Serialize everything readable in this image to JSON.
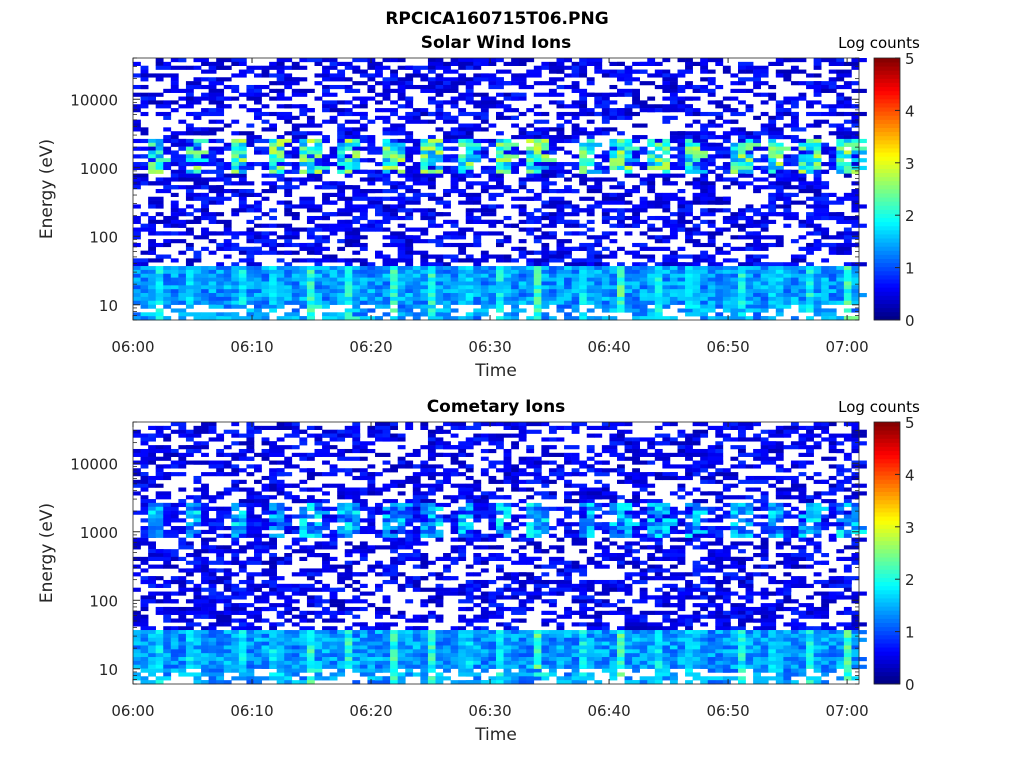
{
  "figure": {
    "title": "RPCICA160715T06.PNG"
  },
  "chart_data": [
    {
      "type": "heatmap",
      "title": "Solar Wind Ions",
      "xlabel": "Time",
      "ylabel": "Energy (eV)",
      "x_ticks": [
        "06:00",
        "06:10",
        "06:20",
        "06:30",
        "06:40",
        "06:50",
        "07:00"
      ],
      "x_range": [
        "06:00",
        "07:01"
      ],
      "y_scale": "log",
      "y_ticks": [
        "10",
        "100",
        "1000",
        "10000"
      ],
      "y_range": [
        6,
        40000
      ],
      "colorbar": {
        "label": "Log counts",
        "ticks": [
          "0",
          "1",
          "2",
          "3",
          "4",
          "5"
        ],
        "range": [
          0,
          5
        ],
        "colormap": "jet"
      },
      "features": [
        {
          "band": "low-energy",
          "energy_range_eV": [
            10,
            30
          ],
          "peak_log_counts": 2.6
        },
        {
          "band": "solar-wind",
          "energy_range_eV": [
            900,
            2500
          ],
          "peak_log_counts": 2.9
        },
        {
          "band": "background",
          "energy_range_eV": [
            6,
            40000
          ],
          "typical_log_counts": 0.3
        }
      ],
      "pulse_times": [
        "06:02",
        "06:05",
        "06:09",
        "06:12",
        "06:15",
        "06:18",
        "06:22",
        "06:25",
        "06:28",
        "06:31",
        "06:34",
        "06:38",
        "06:41",
        "06:44",
        "06:47",
        "06:51",
        "06:54",
        "06:57",
        "07:00"
      ]
    },
    {
      "type": "heatmap",
      "title": "Cometary Ions",
      "xlabel": "Time",
      "ylabel": "Energy (eV)",
      "x_ticks": [
        "06:00",
        "06:10",
        "06:20",
        "06:30",
        "06:40",
        "06:50",
        "07:00"
      ],
      "x_range": [
        "06:00",
        "07:01"
      ],
      "y_scale": "log",
      "y_ticks": [
        "10",
        "100",
        "1000",
        "10000"
      ],
      "y_range": [
        6,
        40000
      ],
      "colorbar": {
        "label": "Log counts",
        "ticks": [
          "0",
          "1",
          "2",
          "3",
          "4",
          "5"
        ],
        "range": [
          0,
          5
        ],
        "colormap": "jet"
      },
      "features": [
        {
          "band": "low-energy",
          "energy_range_eV": [
            10,
            30
          ],
          "peak_log_counts": 2.6
        },
        {
          "band": "solar-wind",
          "energy_range_eV": [
            900,
            2500
          ],
          "peak_log_counts": 2.0
        },
        {
          "band": "background",
          "energy_range_eV": [
            6,
            40000
          ],
          "typical_log_counts": 0.3
        }
      ],
      "pulse_times": [
        "06:02",
        "06:05",
        "06:09",
        "06:12",
        "06:15",
        "06:18",
        "06:22",
        "06:25",
        "06:28",
        "06:31",
        "06:34",
        "06:38",
        "06:41",
        "06:44",
        "06:47",
        "06:51",
        "06:54",
        "06:57",
        "07:00"
      ]
    }
  ]
}
